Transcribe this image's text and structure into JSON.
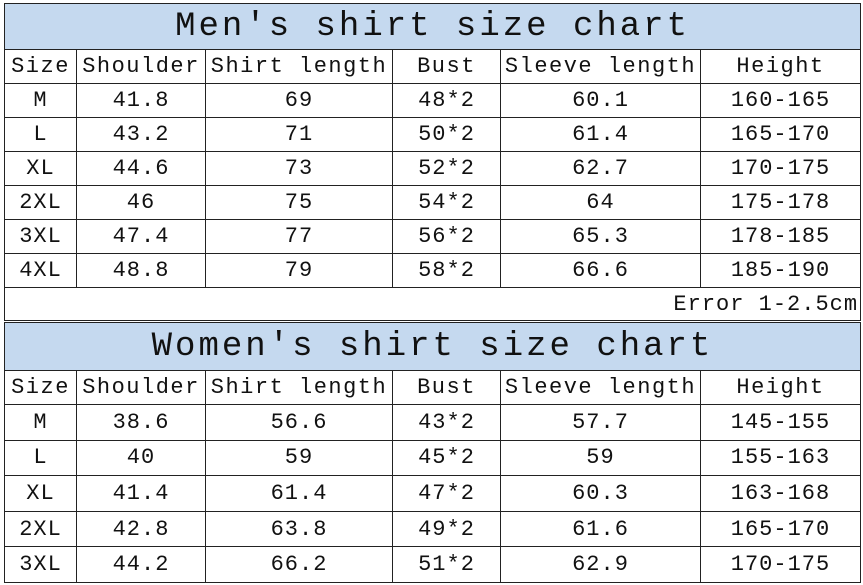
{
  "headers": [
    "Size",
    "Shoulder",
    "Shirt length",
    "Bust",
    "Sleeve length",
    "Height"
  ],
  "colors": {
    "title_bg": "#c5d9ef",
    "border": "#222222"
  },
  "men": {
    "title": "Men's shirt size chart",
    "rows": [
      [
        "M",
        "41.8",
        "69",
        "48*2",
        "60.1",
        "160-165"
      ],
      [
        "L",
        "43.2",
        "71",
        "50*2",
        "61.4",
        "165-170"
      ],
      [
        "XL",
        "44.6",
        "73",
        "52*2",
        "62.7",
        "170-175"
      ],
      [
        "2XL",
        "46",
        "75",
        "54*2",
        "64",
        "175-178"
      ],
      [
        "3XL",
        "47.4",
        "77",
        "56*2",
        "65.3",
        "178-185"
      ],
      [
        "4XL",
        "48.8",
        "79",
        "58*2",
        "66.6",
        "185-190"
      ]
    ],
    "note": "Error 1-2.5cm"
  },
  "women": {
    "title": "Women's shirt size chart",
    "rows": [
      [
        "M",
        "38.6",
        "56.6",
        "43*2",
        "57.7",
        "145-155"
      ],
      [
        "L",
        "40",
        "59",
        "45*2",
        "59",
        "155-163"
      ],
      [
        "XL",
        "41.4",
        "61.4",
        "47*2",
        "60.3",
        "163-168"
      ],
      [
        "2XL",
        "42.8",
        "63.8",
        "49*2",
        "61.6",
        "165-170"
      ],
      [
        "3XL",
        "44.2",
        "66.2",
        "51*2",
        "62.9",
        "170-175"
      ]
    ]
  }
}
